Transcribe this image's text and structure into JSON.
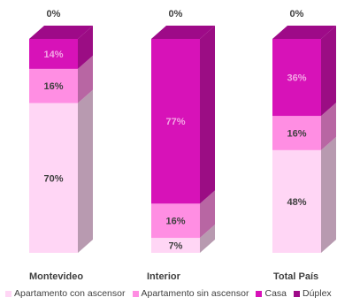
{
  "chart_data": {
    "type": "bar",
    "stacked": true,
    "three_d": true,
    "categories": [
      "Montevideo",
      "Interior",
      "Total País"
    ],
    "series": [
      {
        "name": "Apartamento con ascensor",
        "color": "#FFD6F5",
        "values": [
          70,
          7,
          48
        ],
        "labels": [
          "70%",
          "7%",
          "48%"
        ]
      },
      {
        "name": "Apartamento sin ascensor",
        "color": "#FF8EE3",
        "values": [
          16,
          16,
          16
        ],
        "labels": [
          "16%",
          "16%",
          "16%"
        ]
      },
      {
        "name": "Casa",
        "color": "#D712B8",
        "values": [
          14,
          77,
          36
        ],
        "labels": [
          "14%",
          "77%",
          "36%"
        ]
      },
      {
        "name": "Dúplex",
        "color": "#9E0A88",
        "values": [
          0,
          0,
          0
        ],
        "labels": [
          "0%",
          "0%",
          "0%"
        ]
      }
    ],
    "ylim": [
      0,
      100
    ],
    "legend_position": "bottom"
  }
}
